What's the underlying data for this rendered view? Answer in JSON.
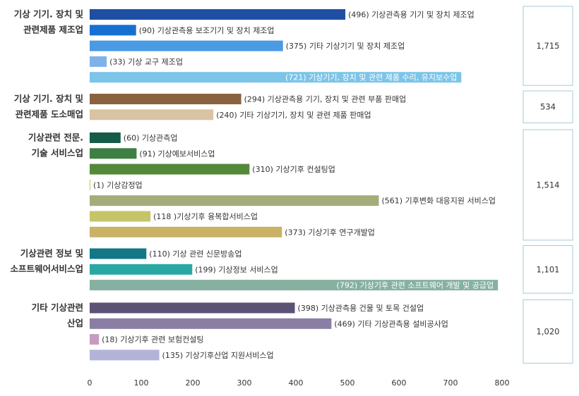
{
  "chart_data": {
    "type": "bar",
    "orientation": "horizontal",
    "xlim": [
      0,
      800
    ],
    "xticks": [
      "0",
      "100",
      "200",
      "300",
      "400",
      "500",
      "600",
      "700",
      "800"
    ],
    "grid": false,
    "groups": [
      {
        "label_lines": [
          "기상 기기. 장치 및",
          "관련제품 제조업"
        ],
        "total": "1,715",
        "bars": [
          {
            "value": 496,
            "label": "(496) 기상관측용 기기 및 장치 제조업",
            "color": "#1e4fa3"
          },
          {
            "value": 90,
            "label": "(90) 기상관측용 보조기기 및 장치 제조업",
            "color": "#1670d2"
          },
          {
            "value": 375,
            "label": "(375) 기타 기상기기 및 장치 제조업",
            "color": "#4a9ae4"
          },
          {
            "value": 33,
            "label": "(33) 기상 교구 제조업",
            "color": "#7fb2ea"
          },
          {
            "value": 721,
            "label": "(721) 기상기기, 장치 및 관련 제품 수리, 유지보수업",
            "color": "#7cc4e8",
            "label_inside": true
          }
        ]
      },
      {
        "label_lines": [
          "기상 기기. 장치 및",
          "관련제품 도소매업"
        ],
        "total": "534",
        "bars": [
          {
            "value": 294,
            "label": "(294) 기상관측용 기기, 장치 및 관련 부품 판매업",
            "color": "#8b6240"
          },
          {
            "value": 240,
            "label": "(240) 기타 기상기기, 장치 및 관련 제품 판매업",
            "color": "#d8c3a2"
          }
        ]
      },
      {
        "label_lines": [
          "기상관련 전문.",
          "기술 서비스업"
        ],
        "total": "1,514",
        "bars": [
          {
            "value": 60,
            "label": "(60) 기상관측업",
            "color": "#165a4a"
          },
          {
            "value": 91,
            "label": "(91) 기상예보서비스업",
            "color": "#3d7f44"
          },
          {
            "value": 310,
            "label": "(310) 기상기후 컨설팅업",
            "color": "#54893a"
          },
          {
            "value": 1,
            "label": "(1) 기상감정업",
            "color": "#c8c560"
          },
          {
            "value": 561,
            "label": "(561) 기후변화 대응지원 서비스업",
            "color": "#a4ad7a"
          },
          {
            "value": 118,
            "label": "(118 )기상기후 융복합서비스업",
            "color": "#c4c567"
          },
          {
            "value": 373,
            "label": "(373) 기상기후 연구개발업",
            "color": "#c9b166"
          }
        ]
      },
      {
        "label_lines": [
          "기상관련 정보 및",
          "소프트웨어서비스업"
        ],
        "total": "1,101",
        "bars": [
          {
            "value": 110,
            "label": "(110) 기상 관련 신문방송업",
            "color": "#137786"
          },
          {
            "value": 199,
            "label": "(199) 기상정보 서비스업",
            "color": "#2aa8a4"
          },
          {
            "value": 792,
            "label": "(792) 기상기후 관련 소프트웨어 개발 및 공급업",
            "color": "#86b1a1",
            "label_inside": true
          }
        ]
      },
      {
        "label_lines": [
          "기타 기상관련",
          "산업"
        ],
        "total": "1,020",
        "bars": [
          {
            "value": 398,
            "label": "(398) 기상관측용 건물 및 토목 건설업",
            "color": "#5b5274"
          },
          {
            "value": 469,
            "label": "(469) 기타 기상관측용 설비공사업",
            "color": "#8a7ea4"
          },
          {
            "value": 18,
            "label": "(18) 기상기후 관련 보험컨설팅",
            "color": "#c59cc0"
          },
          {
            "value": 135,
            "label": "(135) 기상기후산업 지원서비스업",
            "color": "#b3b3da"
          }
        ]
      }
    ]
  }
}
